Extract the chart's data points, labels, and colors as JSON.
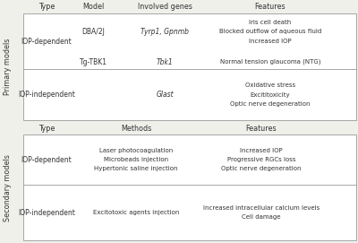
{
  "bg_color": "#f0f0eb",
  "box_color": "#ffffff",
  "border_color": "#999999",
  "text_color": "#333333",
  "primary_label": "Primary models",
  "primary_cols": [
    "Type",
    "Model",
    "Involved genes",
    "Features"
  ],
  "primary_iop_dep_type": "IOP-dependent",
  "primary_iop_indep_type": "IOP-independent",
  "dba_model": "DBA/2J",
  "dba_gene": "Tyrp1, Gpnmb",
  "dba_features": [
    "Iris cell death",
    "Blocked outflow of aqueous fluid",
    "Increased IOP"
  ],
  "tgtkb_model": "Tg-TBK1",
  "tgtkb_gene": "Tbk1",
  "tgtkb_feature": "Normal tension glaucoma (NTG)",
  "indep_gene": "Glast",
  "indep_features": [
    "Oxidative stress",
    "Excititoxicity",
    "Optic nerve degeneration"
  ],
  "secondary_label": "Secondary models",
  "secondary_cols": [
    "Type",
    "Methods",
    "Features"
  ],
  "secondary_iop_dep_type": "IOP-dependent",
  "secondary_iop_indep_type": "IOP-independent",
  "dep_methods": [
    "Laser photocoagulation",
    "Microbeads injection",
    "Hypertonic saline injection"
  ],
  "dep_features": [
    "Increased IOP",
    "Progressive RGCs loss",
    "Optic nerve degeneration"
  ],
  "indep2_methods": [
    "Excitotoxic agents injection"
  ],
  "indep2_features": [
    "Increased intracellular calcium levels",
    "Cell damage"
  ]
}
